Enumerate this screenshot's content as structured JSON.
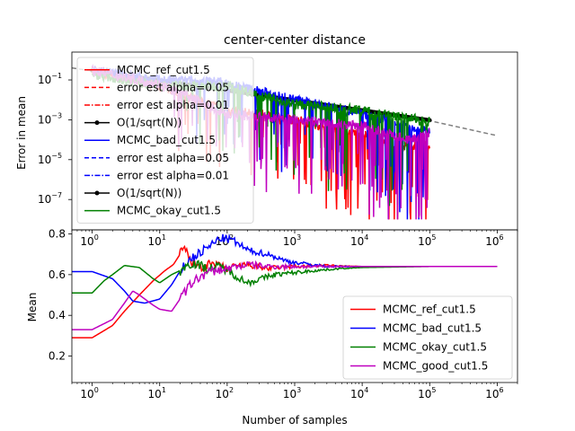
{
  "chart_data": [
    {
      "type": "line",
      "title": "center-center distance",
      "xlabel": "",
      "ylabel": "Error in mean",
      "xscale": "log",
      "yscale": "log",
      "xlim": [
        0.5,
        2000000
      ],
      "ylim": [
        3e-09,
        2.5
      ],
      "x_ticks": [
        {
          "label": "10",
          "sup": "0",
          "value": 1
        },
        {
          "label": "10",
          "sup": "1",
          "value": 10
        },
        {
          "label": "10",
          "sup": "2",
          "value": 100
        },
        {
          "label": "10",
          "sup": "3",
          "value": 1000
        },
        {
          "label": "10",
          "sup": "4",
          "value": 10000
        },
        {
          "label": "10",
          "sup": "5",
          "value": 100000
        },
        {
          "label": "10",
          "sup": "6",
          "value": 1000000
        }
      ],
      "y_ticks": [
        {
          "label": "10",
          "sup": "−1",
          "value": 0.1
        },
        {
          "label": "10",
          "sup": "−3",
          "value": 0.001
        },
        {
          "label": "10",
          "sup": "−5",
          "value": 1e-05
        },
        {
          "label": "10",
          "sup": "−7",
          "value": 1e-07
        }
      ],
      "legend": {
        "position": "upper-left",
        "entries": [
          {
            "label": "MCMC_ref_cut1.5",
            "color": "#ff0000",
            "style": "solid",
            "marker": false
          },
          {
            "label": "error est alpha=0.05",
            "color": "#ff0000",
            "style": "dashed",
            "marker": false
          },
          {
            "label": "error est alpha=0.01",
            "color": "#ff0000",
            "style": "dashdot",
            "marker": false
          },
          {
            "label": "O(1/sqrt(N))",
            "color": "#000000",
            "style": "solid",
            "marker": true
          },
          {
            "label": "MCMC_bad_cut1.5",
            "color": "#0000ff",
            "style": "solid",
            "marker": false
          },
          {
            "label": "error est alpha=0.05",
            "color": "#0000ff",
            "style": "dashed",
            "marker": false
          },
          {
            "label": "error est alpha=0.01",
            "color": "#0000ff",
            "style": "dashdot",
            "marker": false
          },
          {
            "label": "O(1/sqrt(N))",
            "color": "#000000",
            "style": "solid",
            "marker": true
          },
          {
            "label": "MCMC_okay_cut1.5",
            "color": "#008000",
            "style": "solid",
            "marker": false
          }
        ]
      },
      "series": [
        {
          "color": "#808080",
          "style": "dashed",
          "x": [
            0.5,
            10,
            100,
            1000,
            10000,
            100000,
            1000000
          ],
          "y": [
            0.4,
            0.09,
            0.028,
            0.009,
            0.0028,
            0.0009,
            0.00016
          ]
        },
        {
          "color": "#000000",
          "style": "solid",
          "marker": true,
          "x": [
            1,
            10,
            100,
            1000,
            10000,
            100000
          ],
          "y": [
            0.3,
            0.095,
            0.03,
            0.0095,
            0.003,
            0.00095
          ]
        },
        {
          "color": "#ff0000",
          "style": "solid",
          "noisy": true,
          "x": [
            1,
            10,
            100,
            1000,
            10000,
            30000,
            100000
          ],
          "y": [
            0.3,
            0.05,
            0.003,
            0.001,
            0.0002,
            4e-05,
            5e-05
          ]
        },
        {
          "color": "#0000ff",
          "style": "solid",
          "noisy": true,
          "x": [
            1,
            10,
            80,
            1000,
            10000,
            100000
          ],
          "y": [
            0.3,
            0.1,
            0.08,
            0.01,
            0.002,
            0.0003
          ]
        },
        {
          "color": "#008000",
          "style": "solid",
          "noisy": true,
          "x": [
            1,
            10,
            100,
            1000,
            10000,
            100000
          ],
          "y": [
            0.2,
            0.05,
            0.05,
            0.006,
            0.003,
            0.0008
          ]
        },
        {
          "color": "#bf00bf",
          "style": "solid",
          "noisy": true,
          "x": [
            1,
            10,
            100,
            1000,
            10000,
            50000,
            100000
          ],
          "y": [
            0.3,
            0.06,
            0.002,
            0.001,
            0.0005,
            0.0001,
            0.0002
          ]
        }
      ]
    },
    {
      "type": "line",
      "title": "",
      "xlabel": "Number of samples",
      "ylabel": "Mean",
      "xscale": "log",
      "yscale": "linear",
      "xlim": [
        0.5,
        2000000
      ],
      "ylim": [
        0.07,
        0.82
      ],
      "x_ticks": [
        {
          "label": "10",
          "sup": "0",
          "value": 1
        },
        {
          "label": "10",
          "sup": "1",
          "value": 10
        },
        {
          "label": "10",
          "sup": "2",
          "value": 100
        },
        {
          "label": "10",
          "sup": "3",
          "value": 1000
        },
        {
          "label": "10",
          "sup": "4",
          "value": 10000
        },
        {
          "label": "10",
          "sup": "5",
          "value": 100000
        },
        {
          "label": "10",
          "sup": "6",
          "value": 1000000
        }
      ],
      "y_ticks": [
        {
          "label": "0.2",
          "value": 0.2
        },
        {
          "label": "0.4",
          "value": 0.4
        },
        {
          "label": "0.6",
          "value": 0.6
        },
        {
          "label": "0.8",
          "value": 0.8
        }
      ],
      "legend": {
        "position": "lower-right",
        "entries": [
          {
            "label": "MCMC_ref_cut1.5",
            "color": "#ff0000"
          },
          {
            "label": "MCMC_bad_cut1.5",
            "color": "#0000ff"
          },
          {
            "label": "MCMC_okay_cut1.5",
            "color": "#008000"
          },
          {
            "label": "MCMC_good_cut1.5",
            "color": "#bf00bf"
          }
        ]
      },
      "series": [
        {
          "name": "MCMC_ref_cut1.5",
          "color": "#ff0000",
          "x": [
            0.5,
            1,
            2,
            3,
            5,
            8,
            12,
            16,
            20,
            23,
            30,
            40,
            60,
            100,
            200,
            400,
            1000,
            3000,
            10000,
            100000,
            1000000
          ],
          "y": [
            0.29,
            0.29,
            0.35,
            0.42,
            0.5,
            0.57,
            0.62,
            0.65,
            0.7,
            0.73,
            0.66,
            0.64,
            0.65,
            0.63,
            0.65,
            0.63,
            0.64,
            0.645,
            0.64,
            0.64,
            0.64
          ]
        },
        {
          "name": "MCMC_bad_cut1.5",
          "color": "#0000ff",
          "x": [
            0.5,
            1,
            2,
            3,
            4,
            6,
            10,
            15,
            22,
            30,
            50,
            80,
            120,
            200,
            400,
            700,
            1000,
            3000,
            10000,
            100000,
            1000000
          ],
          "y": [
            0.615,
            0.615,
            0.58,
            0.52,
            0.47,
            0.46,
            0.48,
            0.55,
            0.64,
            0.68,
            0.73,
            0.78,
            0.77,
            0.72,
            0.7,
            0.67,
            0.66,
            0.64,
            0.64,
            0.64,
            0.64
          ]
        },
        {
          "name": "MCMC_okay_cut1.5",
          "color": "#008000",
          "x": [
            0.5,
            1,
            1.5,
            2,
            3,
            5,
            8,
            10,
            15,
            20,
            30,
            50,
            80,
            200,
            500,
            1000,
            2000,
            5000,
            10000,
            100000,
            1000000
          ],
          "y": [
            0.51,
            0.51,
            0.57,
            0.6,
            0.645,
            0.635,
            0.58,
            0.56,
            0.6,
            0.62,
            0.66,
            0.63,
            0.64,
            0.56,
            0.6,
            0.61,
            0.62,
            0.63,
            0.635,
            0.64,
            0.64
          ]
        },
        {
          "name": "MCMC_good_cut1.5",
          "color": "#bf00bf",
          "x": [
            0.5,
            1,
            2,
            3,
            4,
            5,
            8,
            10,
            15,
            20,
            30,
            50,
            100,
            200,
            400,
            1000,
            3000,
            10000,
            100000,
            1000000
          ],
          "y": [
            0.33,
            0.33,
            0.38,
            0.46,
            0.52,
            0.5,
            0.45,
            0.43,
            0.42,
            0.48,
            0.56,
            0.61,
            0.63,
            0.65,
            0.64,
            0.64,
            0.64,
            0.64,
            0.64,
            0.64
          ]
        }
      ]
    }
  ]
}
